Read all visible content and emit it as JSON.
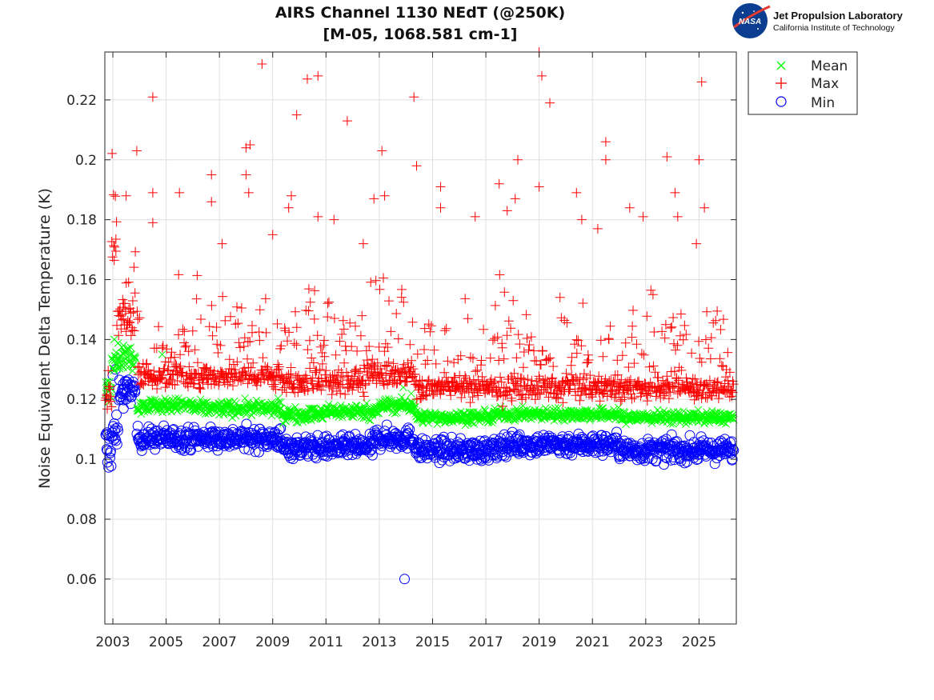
{
  "logo": {
    "title": "Jet Propulsion Laboratory",
    "subtitle": "California Institute of Technology",
    "badge": "NASA"
  },
  "chart_data": {
    "type": "scatter",
    "title": [
      "AIRS Channel 1130 NEdT (@250K)",
      "[M-05, 1068.581 cm-1]"
    ],
    "xlabel": "",
    "ylabel": "Noise Equivalent Delta Temperature (K)",
    "xlim": [
      2002.7,
      2026.4
    ],
    "ylim": [
      0.045,
      0.236
    ],
    "xticks": [
      2003,
      2005,
      2007,
      2009,
      2011,
      2013,
      2015,
      2017,
      2019,
      2021,
      2023,
      2025
    ],
    "yticks": [
      0.06,
      0.08,
      0.1,
      0.12,
      0.14,
      0.16,
      0.18,
      0.2,
      0.22
    ],
    "ytick_labels": [
      "0.06",
      "0.08",
      "0.1",
      "0.12",
      "0.14",
      "0.16",
      "0.18",
      "0.2",
      "0.22"
    ],
    "grid": true,
    "legend_position": "outside-top-right",
    "series": [
      {
        "name": "Mean",
        "marker": "x",
        "color": "#00ff00",
        "levels": [
          {
            "from": 2002.72,
            "to": 2002.95,
            "y": 0.124,
            "spread": 0.002
          },
          {
            "from": 2002.95,
            "to": 2003.85,
            "y": 0.134,
            "spread": 0.002
          },
          {
            "from": 2003.9,
            "to": 2006.0,
            "y": 0.118,
            "spread": 0.0012
          },
          {
            "from": 2006.0,
            "to": 2009.3,
            "y": 0.117,
            "spread": 0.0012
          },
          {
            "from": 2009.3,
            "to": 2011.0,
            "y": 0.115,
            "spread": 0.0012
          },
          {
            "from": 2011.0,
            "to": 2013.0,
            "y": 0.116,
            "spread": 0.0012
          },
          {
            "from": 2013.0,
            "to": 2014.35,
            "y": 0.118,
            "spread": 0.0012
          },
          {
            "from": 2014.35,
            "to": 2017.3,
            "y": 0.114,
            "spread": 0.001
          },
          {
            "from": 2017.3,
            "to": 2022.0,
            "y": 0.115,
            "spread": 0.001
          },
          {
            "from": 2022.0,
            "to": 2026.3,
            "y": 0.114,
            "spread": 0.001
          }
        ],
        "outliers": [
          [
            2003.05,
            0.14
          ],
          [
            2003.4,
            0.138
          ],
          [
            2004.85,
            0.135
          ],
          [
            2013.9,
            0.124
          ],
          [
            2014.2,
            0.122
          ]
        ]
      },
      {
        "name": "Max",
        "marker": "+",
        "color": "#ff0000",
        "levels": [
          {
            "from": 2002.72,
            "to": 2002.95,
            "y": 0.121,
            "spread": 0.002
          },
          {
            "from": 2002.95,
            "to": 2003.15,
            "y": 0.166,
            "spread": 0.004
          },
          {
            "from": 2003.15,
            "to": 2003.85,
            "y": 0.147,
            "spread": 0.003
          },
          {
            "from": 2003.9,
            "to": 2009.3,
            "y": 0.128,
            "spread": 0.002
          },
          {
            "from": 2009.3,
            "to": 2012.5,
            "y": 0.126,
            "spread": 0.002
          },
          {
            "from": 2012.5,
            "to": 2014.35,
            "y": 0.129,
            "spread": 0.002
          },
          {
            "from": 2014.35,
            "to": 2026.3,
            "y": 0.124,
            "spread": 0.002
          }
        ],
        "outliers": [
          [
            2004.5,
            0.221
          ],
          [
            2004.5,
            0.189
          ],
          [
            2005.5,
            0.189
          ],
          [
            2006.7,
            0.195
          ],
          [
            2006.7,
            0.186
          ],
          [
            2008.0,
            0.204
          ],
          [
            2008.15,
            0.205
          ],
          [
            2008.0,
            0.195
          ],
          [
            2008.6,
            0.232
          ],
          [
            2008.1,
            0.189
          ],
          [
            2009.7,
            0.188
          ],
          [
            2009.9,
            0.215
          ],
          [
            2010.3,
            0.227
          ],
          [
            2010.7,
            0.228
          ],
          [
            2011.8,
            0.213
          ],
          [
            2013.1,
            0.203
          ],
          [
            2013.2,
            0.188
          ],
          [
            2012.8,
            0.187
          ],
          [
            2014.3,
            0.221
          ],
          [
            2014.4,
            0.198
          ],
          [
            2015.3,
            0.191
          ],
          [
            2015.3,
            0.184
          ],
          [
            2017.5,
            0.192
          ],
          [
            2017.8,
            0.183
          ],
          [
            2018.2,
            0.2
          ],
          [
            2018.1,
            0.187
          ],
          [
            2019.0,
            0.236
          ],
          [
            2019.1,
            0.228
          ],
          [
            2019.4,
            0.219
          ],
          [
            2019.0,
            0.191
          ],
          [
            2020.4,
            0.189
          ],
          [
            2021.5,
            0.206
          ],
          [
            2021.5,
            0.2
          ],
          [
            2022.4,
            0.184
          ],
          [
            2023.8,
            0.201
          ],
          [
            2024.1,
            0.189
          ],
          [
            2025.1,
            0.226
          ],
          [
            2025.0,
            0.2
          ],
          [
            2025.2,
            0.184
          ],
          [
            2003.9,
            0.203
          ],
          [
            2003.5,
            0.188
          ],
          [
            2004.5,
            0.179
          ],
          [
            2016.6,
            0.181
          ],
          [
            2020.6,
            0.18
          ],
          [
            2022.9,
            0.181
          ],
          [
            2024.2,
            0.181
          ],
          [
            2009.6,
            0.184
          ],
          [
            2011.3,
            0.18
          ],
          [
            2010.7,
            0.181
          ],
          [
            2007.1,
            0.172
          ],
          [
            2009.0,
            0.175
          ],
          [
            2012.4,
            0.172
          ],
          [
            2024.9,
            0.172
          ],
          [
            2021.2,
            0.177
          ]
        ]
      },
      {
        "name": "Min",
        "marker": "o",
        "color": "#0000ff",
        "levels": [
          {
            "from": 2002.72,
            "to": 2002.95,
            "y": 0.104,
            "spread": 0.004
          },
          {
            "from": 2002.95,
            "to": 2003.2,
            "y": 0.108,
            "spread": 0.003
          },
          {
            "from": 2003.2,
            "to": 2003.85,
            "y": 0.123,
            "spread": 0.002
          },
          {
            "from": 2003.9,
            "to": 2009.3,
            "y": 0.107,
            "spread": 0.0018
          },
          {
            "from": 2009.3,
            "to": 2012.8,
            "y": 0.104,
            "spread": 0.0018
          },
          {
            "from": 2012.8,
            "to": 2014.35,
            "y": 0.107,
            "spread": 0.0018
          },
          {
            "from": 2014.35,
            "to": 2017.5,
            "y": 0.103,
            "spread": 0.0018
          },
          {
            "from": 2017.5,
            "to": 2022.0,
            "y": 0.105,
            "spread": 0.0018
          },
          {
            "from": 2022.0,
            "to": 2026.3,
            "y": 0.103,
            "spread": 0.0018
          }
        ],
        "outliers": [
          [
            2013.95,
            0.06
          ],
          [
            2003.1,
            0.13
          ],
          [
            2003.0,
            0.128
          ],
          [
            2003.4,
            0.117
          ],
          [
            2002.8,
            0.099
          ]
        ]
      }
    ]
  }
}
